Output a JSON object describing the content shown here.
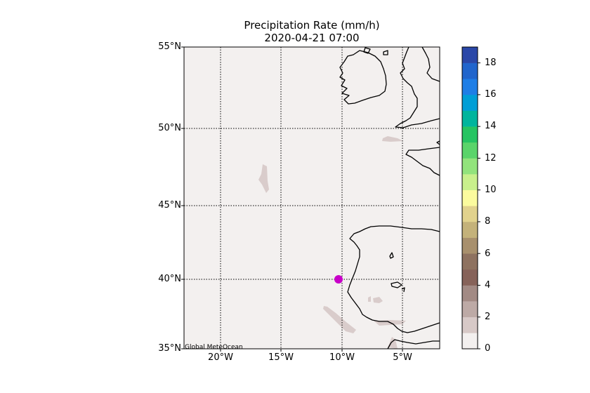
{
  "title": "Precipitation Rate (mm/h)",
  "subtitle": "2020-04-21 07:00",
  "credit": "Global MeteOcean",
  "lat_labels": [
    "55°N",
    "50°N",
    "45°N",
    "40°N",
    "35°N"
  ],
  "lon_labels": [
    "20°W",
    "15°W",
    "10°W",
    "5°W"
  ],
  "colorbar": {
    "ticks": [
      "0",
      "2",
      "4",
      "6",
      "8",
      "10",
      "12",
      "14",
      "16",
      "18"
    ],
    "range": [
      0,
      19
    ],
    "colors": [
      "#f3f0ef",
      "#d7c9c7",
      "#bdaaa6",
      "#a28a84",
      "#866259",
      "#8e7260",
      "#a8906d",
      "#c4b27a",
      "#e1d28d",
      "#fbfb9e",
      "#c9f08c",
      "#92e37c",
      "#5ad46a",
      "#26c462",
      "#00b59d",
      "#009ed6",
      "#1e7ee6",
      "#2165cc",
      "#2a47a8"
    ]
  },
  "marker": {
    "lon": -10.3,
    "lat": 40.0,
    "color": "#c800c8"
  },
  "map": {
    "background": "#f3f0ef",
    "lon_range": [
      -23,
      -2
    ],
    "lat_range": [
      35,
      55
    ]
  }
}
